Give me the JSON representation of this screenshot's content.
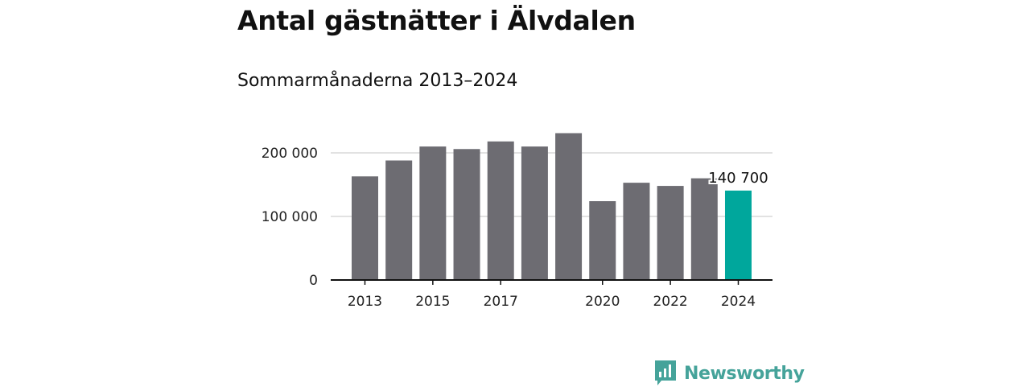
{
  "title": "Antal gästnätter i Älvdalen",
  "subtitle": "Sommarmånaderna 2013–2024",
  "brand": "Newsworthy",
  "colors": {
    "bar": "#6d6c72",
    "highlight": "#00a79c",
    "grid": "#d9d9d9",
    "axis": "#111111",
    "brand": "#45a39a"
  },
  "chart_data": {
    "type": "bar",
    "categories": [
      "2013",
      "2014",
      "2015",
      "2016",
      "2017",
      "2018",
      "2019",
      "2020",
      "2021",
      "2022",
      "2023",
      "2024"
    ],
    "values": [
      163000,
      188000,
      210000,
      206000,
      218000,
      210000,
      231000,
      124000,
      153000,
      148000,
      160000,
      140700
    ],
    "highlight_index": 11,
    "data_label": "140 700",
    "ylim": [
      0,
      240000
    ],
    "yticks": [
      0,
      100000,
      200000
    ],
    "ytick_labels": [
      "0",
      "100 000",
      "200 000"
    ],
    "xtick_labels": [
      "2013",
      "2015",
      "2017",
      "2020",
      "2022",
      "2024"
    ],
    "grid": true
  }
}
